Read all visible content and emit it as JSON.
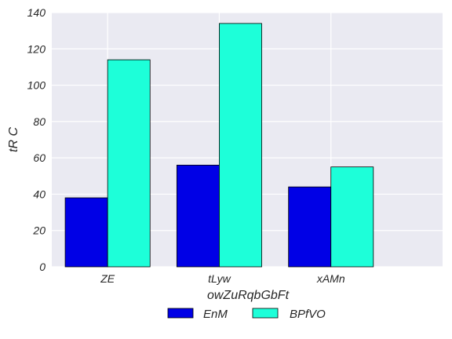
{
  "chart_data": {
    "type": "bar",
    "categories": [
      "ZE",
      "tLyw",
      "xAMn"
    ],
    "series": [
      {
        "name": "EnM",
        "values": [
          38,
          56,
          44
        ],
        "color": "#0000e6"
      },
      {
        "name": "BPfVO",
        "values": [
          114,
          134,
          55
        ],
        "color": "#1dffd9"
      }
    ],
    "xlabel": "owZuRqbGbFt",
    "ylabel": "tR  C",
    "ylim": [
      0,
      140
    ],
    "yticks": [
      0,
      20,
      40,
      60,
      80,
      100,
      120,
      140
    ],
    "grid": true,
    "legend_position": "bottom-center",
    "background_color": "#eaeaf2",
    "grid_color": "#ffffff"
  }
}
